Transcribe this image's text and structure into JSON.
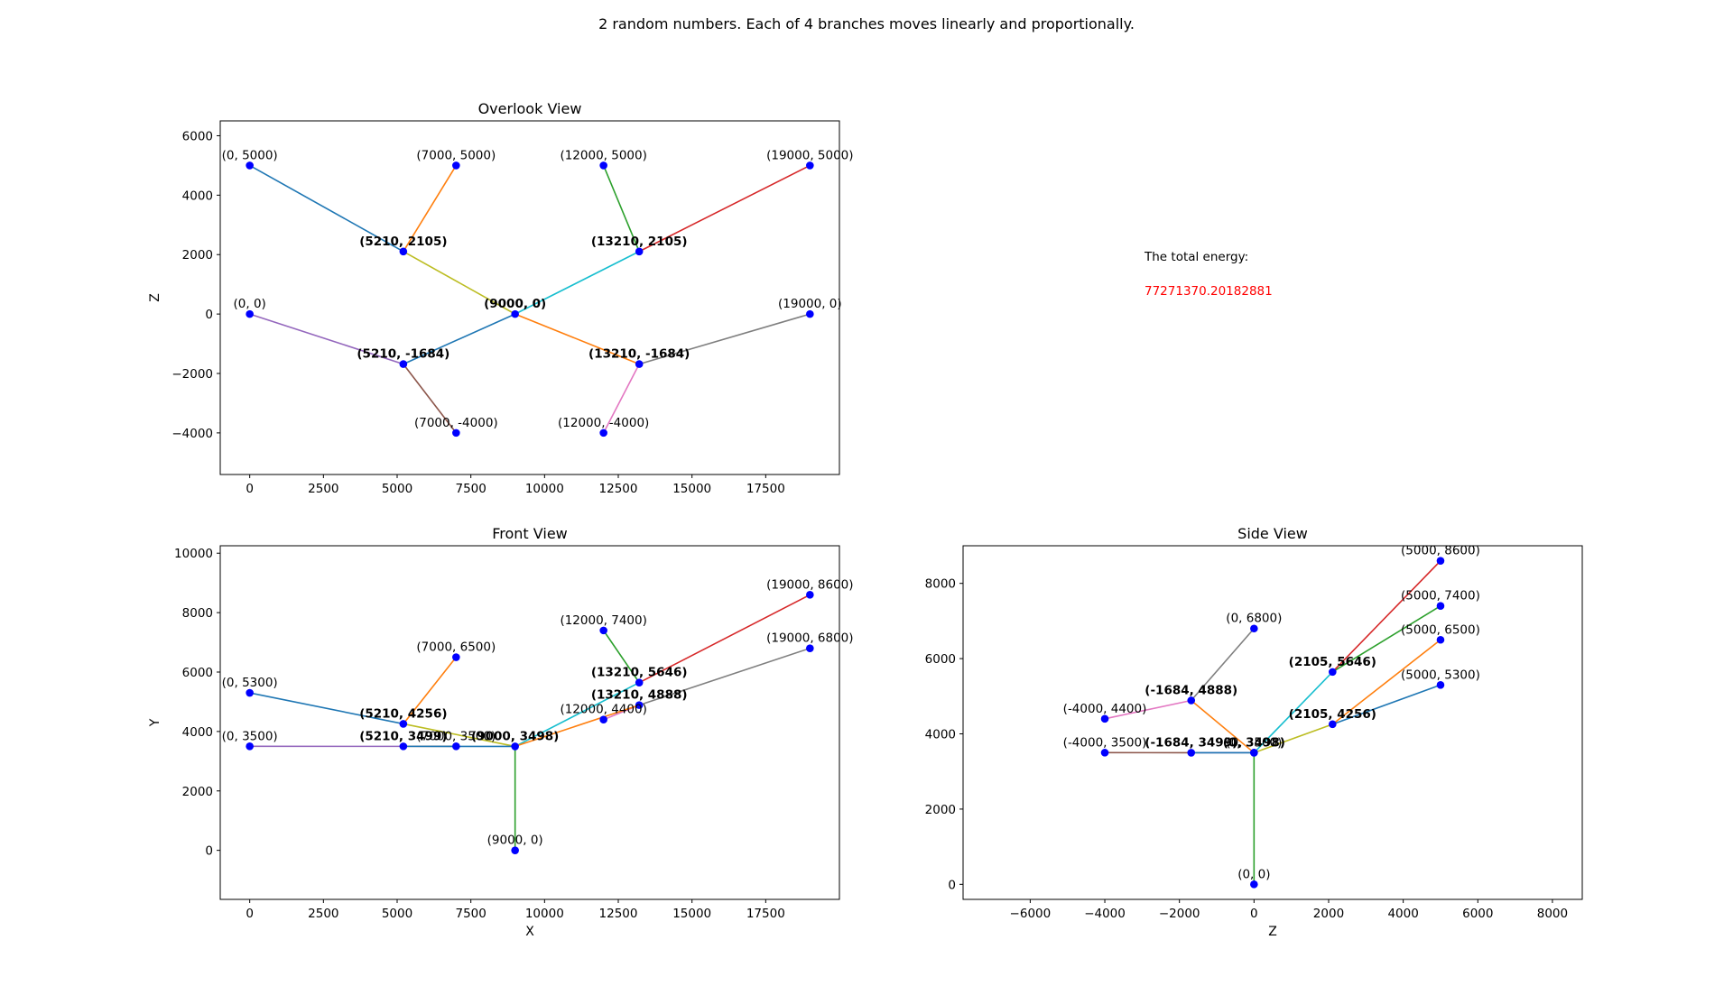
{
  "suptitle": "2 random numbers. Each of 4 branches moves linearly and proportionally.",
  "energy": {
    "label": "The total energy:",
    "value": "77271370.20182881",
    "value_color": "#ff0000"
  },
  "chart_data": [
    {
      "id": "overlook",
      "type": "line",
      "title": "Overlook View",
      "xlabel": "",
      "ylabel": "Z",
      "xlim": [
        -1000,
        20000
      ],
      "ylim": [
        -5400,
        6500
      ],
      "xticks": [
        0,
        2500,
        5000,
        7500,
        10000,
        12500,
        15000,
        17500
      ],
      "yticks": [
        -4000,
        -2000,
        0,
        2000,
        4000,
        6000
      ],
      "segments": [
        {
          "color": "#1f77b4",
          "from": [
            0,
            5000
          ],
          "to": [
            5210,
            2105
          ]
        },
        {
          "color": "#ff7f0e",
          "from": [
            7000,
            5000
          ],
          "to": [
            5210,
            2105
          ]
        },
        {
          "color": "#2ca02c",
          "from": [
            12000,
            5000
          ],
          "to": [
            13210,
            2105
          ]
        },
        {
          "color": "#d62728",
          "from": [
            19000,
            5000
          ],
          "to": [
            13210,
            2105
          ]
        },
        {
          "color": "#9467bd",
          "from": [
            0,
            0
          ],
          "to": [
            5210,
            -1684
          ]
        },
        {
          "color": "#8c564b",
          "from": [
            7000,
            -4000
          ],
          "to": [
            5210,
            -1684
          ]
        },
        {
          "color": "#e377c2",
          "from": [
            12000,
            -4000
          ],
          "to": [
            13210,
            -1684
          ]
        },
        {
          "color": "#7f7f7f",
          "from": [
            19000,
            0
          ],
          "to": [
            13210,
            -1684
          ]
        },
        {
          "color": "#bcbd22",
          "from": [
            5210,
            2105
          ],
          "to": [
            9000,
            0
          ]
        },
        {
          "color": "#17becf",
          "from": [
            13210,
            2105
          ],
          "to": [
            9000,
            0
          ]
        },
        {
          "color": "#1f77b4",
          "from": [
            5210,
            -1684
          ],
          "to": [
            9000,
            0
          ]
        },
        {
          "color": "#ff7f0e",
          "from": [
            13210,
            -1684
          ],
          "to": [
            9000,
            0
          ]
        }
      ],
      "points": [
        {
          "x": 0,
          "y": 5000,
          "label": "(0, 5000)"
        },
        {
          "x": 7000,
          "y": 5000,
          "label": "(7000, 5000)"
        },
        {
          "x": 12000,
          "y": 5000,
          "label": "(12000, 5000)"
        },
        {
          "x": 19000,
          "y": 5000,
          "label": "(19000, 5000)"
        },
        {
          "x": 5210,
          "y": 2105,
          "label": "(5210, 2105)",
          "bold": true
        },
        {
          "x": 13210,
          "y": 2105,
          "label": "(13210, 2105)",
          "bold": true
        },
        {
          "x": 0,
          "y": 0,
          "label": "(0, 0)"
        },
        {
          "x": 9000,
          "y": 0,
          "label": "(9000, 0)",
          "bold": true
        },
        {
          "x": 19000,
          "y": 0,
          "label": "(19000, 0)"
        },
        {
          "x": 5210,
          "y": -1684,
          "label": "(5210, -1684)",
          "bold": true
        },
        {
          "x": 13210,
          "y": -1684,
          "label": "(13210, -1684)",
          "bold": true
        },
        {
          "x": 7000,
          "y": -4000,
          "label": "(7000, -4000)"
        },
        {
          "x": 12000,
          "y": -4000,
          "label": "(12000, -4000)"
        }
      ]
    },
    {
      "id": "front",
      "type": "line",
      "title": "Front View",
      "xlabel": "X",
      "ylabel": "Y",
      "xlim": [
        -1000,
        20000
      ],
      "ylim": [
        -1650,
        10250
      ],
      "xticks": [
        0,
        2500,
        5000,
        7500,
        10000,
        12500,
        15000,
        17500
      ],
      "yticks": [
        0,
        2000,
        4000,
        6000,
        8000,
        10000
      ],
      "segments": [
        {
          "color": "#1f77b4",
          "from": [
            0,
            5300
          ],
          "to": [
            5210,
            4256
          ]
        },
        {
          "color": "#ff7f0e",
          "from": [
            7000,
            6500
          ],
          "to": [
            5210,
            4256
          ]
        },
        {
          "color": "#2ca02c",
          "from": [
            12000,
            7400
          ],
          "to": [
            13210,
            5646
          ]
        },
        {
          "color": "#d62728",
          "from": [
            19000,
            8600
          ],
          "to": [
            13210,
            5646
          ]
        },
        {
          "color": "#9467bd",
          "from": [
            0,
            3500
          ],
          "to": [
            5210,
            3499
          ]
        },
        {
          "color": "#8c564b",
          "from": [
            7000,
            3500
          ],
          "to": [
            5210,
            3499
          ]
        },
        {
          "color": "#e377c2",
          "from": [
            12000,
            4400
          ],
          "to": [
            13210,
            4888
          ]
        },
        {
          "color": "#7f7f7f",
          "from": [
            19000,
            6800
          ],
          "to": [
            13210,
            4888
          ]
        },
        {
          "color": "#bcbd22",
          "from": [
            5210,
            4256
          ],
          "to": [
            9000,
            3498
          ]
        },
        {
          "color": "#17becf",
          "from": [
            13210,
            5646
          ],
          "to": [
            9000,
            3498
          ]
        },
        {
          "color": "#1f77b4",
          "from": [
            5210,
            3499
          ],
          "to": [
            9000,
            3498
          ]
        },
        {
          "color": "#ff7f0e",
          "from": [
            13210,
            4888
          ],
          "to": [
            9000,
            3498
          ]
        },
        {
          "color": "#2ca02c",
          "from": [
            9000,
            3498
          ],
          "to": [
            9000,
            0
          ]
        }
      ],
      "points": [
        {
          "x": 19000,
          "y": 8600,
          "label": "(19000, 8600)"
        },
        {
          "x": 12000,
          "y": 7400,
          "label": "(12000, 7400)"
        },
        {
          "x": 19000,
          "y": 6800,
          "label": "(19000, 6800)"
        },
        {
          "x": 7000,
          "y": 6500,
          "label": "(7000, 6500)"
        },
        {
          "x": 13210,
          "y": 5646,
          "label": "(13210, 5646)",
          "bold": true
        },
        {
          "x": 0,
          "y": 5300,
          "label": "(0, 5300)"
        },
        {
          "x": 13210,
          "y": 4888,
          "label": "(13210, 4888)",
          "bold": true
        },
        {
          "x": 12000,
          "y": 4400,
          "label": "(12000, 4400)"
        },
        {
          "x": 5210,
          "y": 4256,
          "label": "(5210, 4256)",
          "bold": true
        },
        {
          "x": 0,
          "y": 3500,
          "label": "(0, 3500)"
        },
        {
          "x": 5210,
          "y": 3499,
          "label": "(5210, 3499)",
          "bold": true
        },
        {
          "x": 7000,
          "y": 3500,
          "label": "(7000, 3500)"
        },
        {
          "x": 9000,
          "y": 3498,
          "label": "(9000, 3498)",
          "bold": true
        },
        {
          "x": 9000,
          "y": 0,
          "label": "(9000, 0)"
        }
      ]
    },
    {
      "id": "side",
      "type": "line",
      "title": "Side View",
      "xlabel": "Z",
      "ylabel": "",
      "xlim": [
        -7800,
        8800
      ],
      "ylim": [
        -400,
        9000
      ],
      "xticks": [
        -6000,
        -4000,
        -2000,
        0,
        2000,
        4000,
        6000,
        8000
      ],
      "yticks": [
        0,
        2000,
        4000,
        6000,
        8000
      ],
      "segments": [
        {
          "color": "#1f77b4",
          "from": [
            5000,
            5300
          ],
          "to": [
            2105,
            4256
          ]
        },
        {
          "color": "#ff7f0e",
          "from": [
            5000,
            6500
          ],
          "to": [
            2105,
            4256
          ]
        },
        {
          "color": "#2ca02c",
          "from": [
            5000,
            7400
          ],
          "to": [
            2105,
            5646
          ]
        },
        {
          "color": "#d62728",
          "from": [
            5000,
            8600
          ],
          "to": [
            2105,
            5646
          ]
        },
        {
          "color": "#9467bd",
          "from": [
            0,
            3500
          ],
          "to": [
            -1684,
            3499
          ]
        },
        {
          "color": "#8c564b",
          "from": [
            -4000,
            3500
          ],
          "to": [
            -1684,
            3499
          ]
        },
        {
          "color": "#e377c2",
          "from": [
            -4000,
            4400
          ],
          "to": [
            -1684,
            4888
          ]
        },
        {
          "color": "#7f7f7f",
          "from": [
            0,
            6800
          ],
          "to": [
            -1684,
            4888
          ]
        },
        {
          "color": "#bcbd22",
          "from": [
            2105,
            4256
          ],
          "to": [
            0,
            3498
          ]
        },
        {
          "color": "#17becf",
          "from": [
            2105,
            5646
          ],
          "to": [
            0,
            3498
          ]
        },
        {
          "color": "#1f77b4",
          "from": [
            -1684,
            3499
          ],
          "to": [
            0,
            3498
          ]
        },
        {
          "color": "#ff7f0e",
          "from": [
            -1684,
            4888
          ],
          "to": [
            0,
            3498
          ]
        },
        {
          "color": "#2ca02c",
          "from": [
            0,
            3498
          ],
          "to": [
            0,
            0
          ]
        }
      ],
      "points": [
        {
          "x": 5000,
          "y": 8600,
          "label": "(5000, 8600)"
        },
        {
          "x": 5000,
          "y": 7400,
          "label": "(5000, 7400)"
        },
        {
          "x": 0,
          "y": 6800,
          "label": "(0, 6800)"
        },
        {
          "x": 5000,
          "y": 6500,
          "label": "(5000, 6500)"
        },
        {
          "x": 2105,
          "y": 5646,
          "label": "(2105, 5646)",
          "bold": true
        },
        {
          "x": 5000,
          "y": 5300,
          "label": "(5000, 5300)"
        },
        {
          "x": -1684,
          "y": 4888,
          "label": "(-1684, 4888)",
          "bold": true
        },
        {
          "x": -4000,
          "y": 4400,
          "label": "(-4000, 4400)"
        },
        {
          "x": 2105,
          "y": 4256,
          "label": "(2105, 4256)",
          "bold": true
        },
        {
          "x": -4000,
          "y": 3500,
          "label": "(-4000, 3500)"
        },
        {
          "x": -1684,
          "y": 3499,
          "label": "(-1684, 3499)",
          "bold": true
        },
        {
          "x": 0,
          "y": 3500,
          "label": "(0, 3500)"
        },
        {
          "x": 0,
          "y": 3498,
          "label": "(0, 3498)",
          "bold": true
        },
        {
          "x": 0,
          "y": 0,
          "label": "(0, 0)"
        }
      ]
    }
  ]
}
